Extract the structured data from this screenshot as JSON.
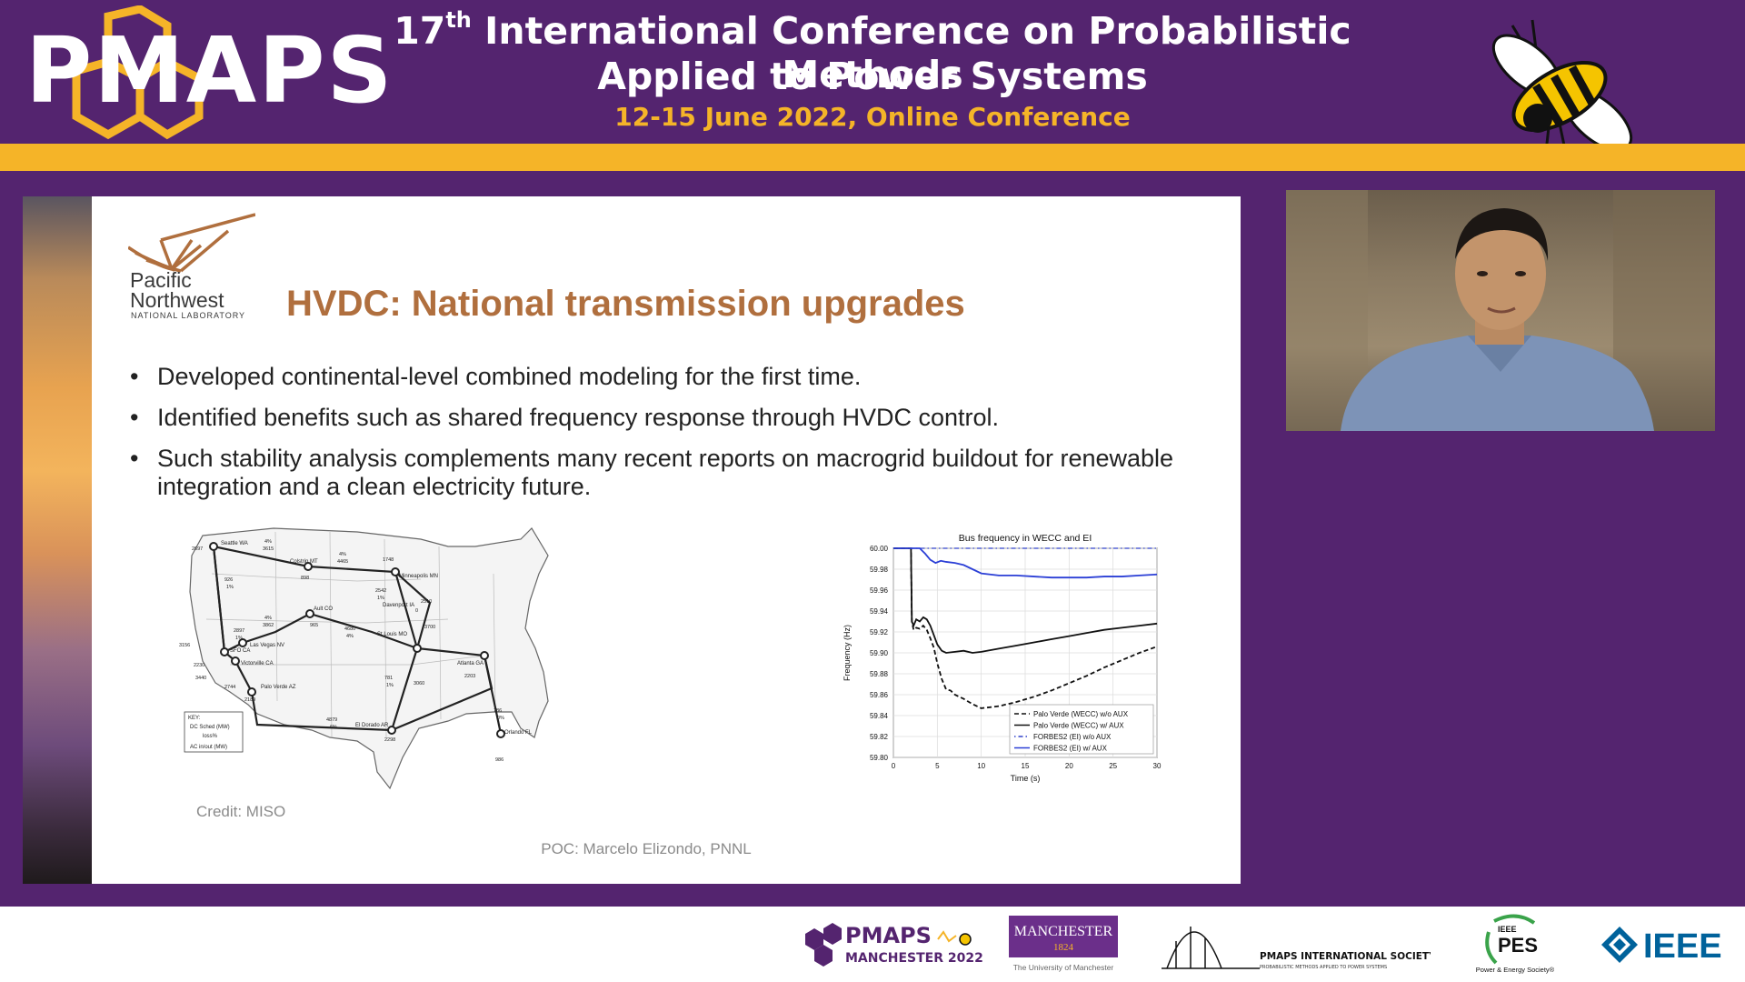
{
  "header": {
    "logo_text": "PMAPS",
    "title_ordinal_num": "17",
    "title_ordinal_suffix": "th",
    "title_line1_rest": " International Conference on Probabilistic Methods",
    "title_line2": "Applied to Power Systems",
    "date_line": "12-15 June 2022, Online Conference"
  },
  "slide": {
    "org_name_line1": "Pacific",
    "org_name_line2": "Northwest",
    "org_subtitle": "NATIONAL LABORATORY",
    "title": "HVDC: National transmission upgrades",
    "bullets": [
      "Developed continental-level combined modeling for the first time.",
      "Identified benefits such as shared frequency response through HVDC control.",
      "Such stability analysis complements many recent reports on macrogrid buildout for renewable integration and a clean electricity future."
    ],
    "credit": "Credit: MISO",
    "poc": "POC: Marcelo Elizondo, PNNL",
    "map_labels": {
      "seattle": "Seattle WA",
      "colstrip": "Colstrip MT",
      "minneapolis": "Minneapolis MN",
      "davenport": "Davenport IA",
      "sfo": "SFO CA",
      "las_vegas": "Las Vegas NV",
      "victorville": "Victorville CA",
      "palo_verde": "Palo Verde AZ",
      "ault": "Ault CO",
      "st_louis": "St Louis MO",
      "atlanta": "Atlanta GA",
      "el_dorado": "El Dorado AR",
      "orlando": "Orlando FL",
      "key_title": "KEY:",
      "key_sched": "DC Sched (MW)",
      "key_loss": "loss%",
      "key_ac": "AC in/out (MW)"
    },
    "map_values": [
      "2697",
      "3615",
      "4%",
      "4465",
      "4%",
      "1748",
      "926",
      "1%",
      "2542",
      "1%",
      "2510",
      "0",
      "3700",
      "898",
      "3156",
      "2230",
      "2897",
      "1%",
      "3862",
      "4%",
      "965",
      "4680",
      "4%",
      "3440",
      "2744",
      "2189",
      "781",
      "1%",
      "3060",
      "2203",
      "4879",
      "6%",
      "2298",
      "786",
      "0%",
      "986"
    ]
  },
  "chart_data": {
    "type": "line",
    "title": "Bus frequency in WECC and EI",
    "xlabel": "Time (s)",
    "ylabel": "Frequency (Hz)",
    "xlim": [
      0,
      30
    ],
    "ylim": [
      59.8,
      60.0
    ],
    "xticks": [
      "0",
      "5",
      "10",
      "15",
      "20",
      "25",
      "30"
    ],
    "yticks": [
      "60.00",
      "59.98",
      "59.96",
      "59.94",
      "59.92",
      "59.90",
      "59.88",
      "59.86",
      "59.84",
      "59.82",
      "59.80"
    ],
    "legend_position": "bottom-right",
    "grid": true,
    "series": [
      {
        "name": "Palo Verde (WECC) w/o AUX",
        "color": "#111111",
        "dash": "dashed",
        "x": [
          0,
          2,
          2.1,
          2.3,
          2.6,
          3,
          3.4,
          3.8,
          4.2,
          4.6,
          5,
          5.5,
          6,
          6.5,
          7,
          8,
          9,
          10,
          12,
          14,
          16,
          18,
          20,
          22,
          24,
          26,
          28,
          30
        ],
        "y": [
          60.0,
          60.0,
          59.93,
          59.922,
          59.924,
          59.923,
          59.926,
          59.922,
          59.914,
          59.905,
          59.89,
          59.875,
          59.865,
          59.864,
          59.86,
          59.856,
          59.851,
          59.847,
          59.849,
          59.853,
          59.858,
          59.864,
          59.871,
          59.878,
          59.886,
          59.893,
          59.9,
          59.906
        ]
      },
      {
        "name": "Palo Verde (WECC) w/ AUX",
        "color": "#111111",
        "dash": "solid",
        "x": [
          0,
          2,
          2.1,
          2.3,
          2.6,
          3,
          3.4,
          3.8,
          4.2,
          4.6,
          5,
          5.5,
          6,
          7,
          8,
          9,
          10,
          12,
          14,
          16,
          18,
          20,
          22,
          24,
          26,
          28,
          30
        ],
        "y": [
          60.0,
          60.0,
          59.93,
          59.926,
          59.932,
          59.93,
          59.934,
          59.932,
          59.926,
          59.917,
          59.908,
          59.902,
          59.9,
          59.901,
          59.902,
          59.9,
          59.901,
          59.904,
          59.907,
          59.91,
          59.913,
          59.916,
          59.919,
          59.922,
          59.924,
          59.926,
          59.928
        ]
      },
      {
        "name": "FORBES2 (EI) w/o AUX",
        "color": "#3344cc",
        "dash": "dashdot",
        "x": [
          0,
          30
        ],
        "y": [
          60.0,
          60.0
        ]
      },
      {
        "name": "FORBES2 (EI) w/ AUX",
        "color": "#2b3fd6",
        "dash": "solid",
        "x": [
          0,
          3,
          3.6,
          4.2,
          4.8,
          5.4,
          6,
          7,
          8,
          9,
          10,
          12,
          14,
          16,
          18,
          20,
          22,
          24,
          26,
          28,
          30
        ],
        "y": [
          60.0,
          60.0,
          59.995,
          59.989,
          59.986,
          59.988,
          59.987,
          59.986,
          59.984,
          59.98,
          59.976,
          59.974,
          59.974,
          59.973,
          59.972,
          59.972,
          59.972,
          59.973,
          59.973,
          59.974,
          59.975
        ]
      }
    ]
  },
  "footer": {
    "pmaps_name": "PMAPS",
    "pmaps_sub": "MANCHESTER 2022",
    "manchester_name": "MANCHESTER",
    "manchester_year": "1824",
    "manchester_sub": "The University of Manchester",
    "pmaps_intl": "PMAPS INTERNATIONAL SOCIETY",
    "pmaps_intl_sub": "PROBABILISTIC METHODS APPLIED TO POWER SYSTEMS",
    "ieee_pes": "PES",
    "ieee_pes_top": "IEEE",
    "ieee_pes_sub": "Power & Energy Society®",
    "ieee": "IEEE"
  }
}
